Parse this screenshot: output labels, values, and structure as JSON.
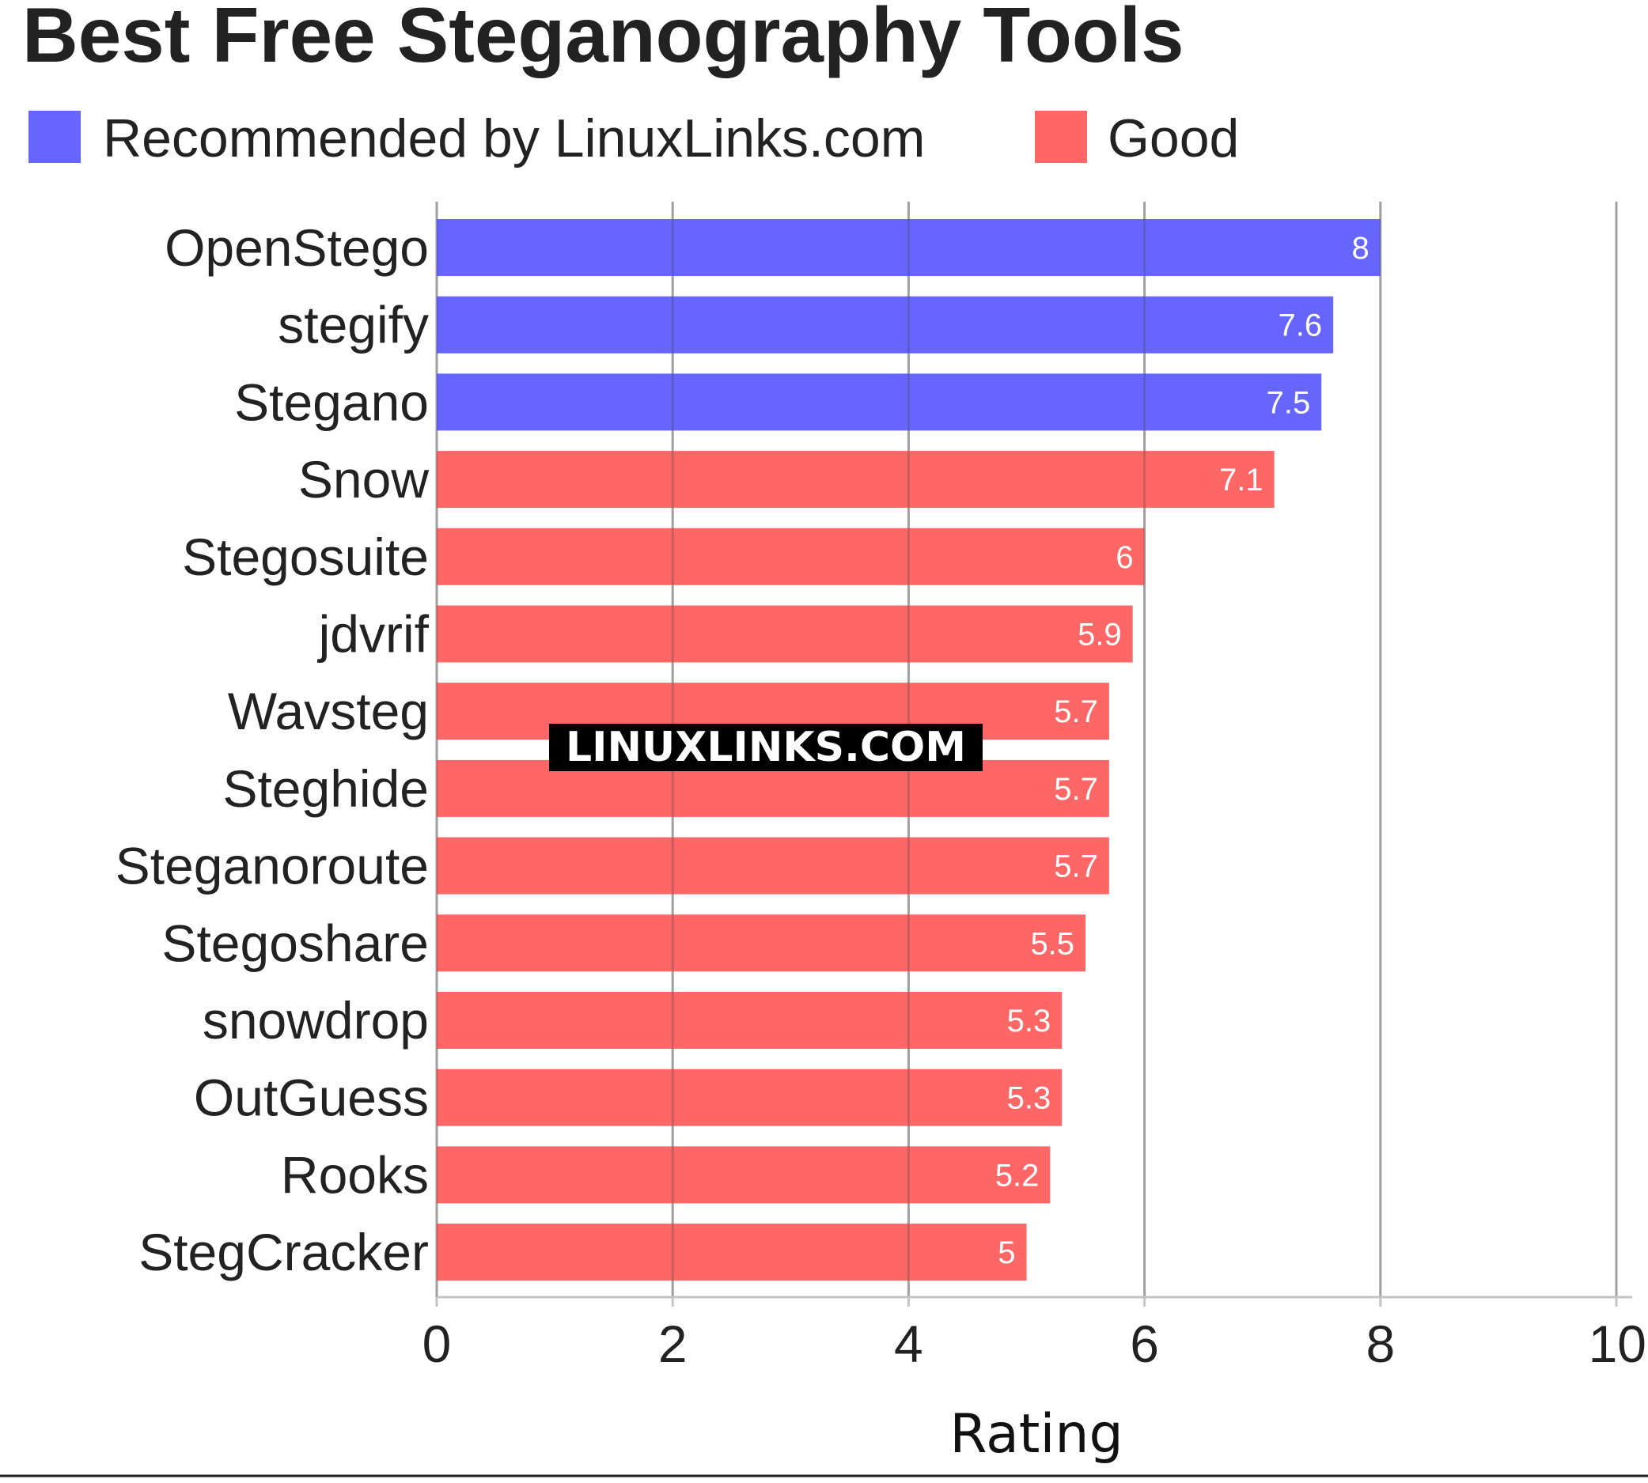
{
  "chart_data": {
    "type": "bar",
    "orientation": "horizontal",
    "title": "Best Free Steganography Tools",
    "xlabel": "Rating",
    "ylabel": "",
    "xlim": [
      0,
      10
    ],
    "xticks": [
      "0",
      "2",
      "4",
      "6",
      "8",
      "10"
    ],
    "grid": "vertical",
    "legend_position": "top-left",
    "legend": [
      {
        "label": "Recommended by LinuxLinks.com",
        "color": "#6666ff"
      },
      {
        "label": "Good",
        "color": "#ff6666"
      }
    ],
    "bars": [
      {
        "category": "OpenStego",
        "value": 8,
        "label": "8",
        "group": "Recommended by LinuxLinks.com"
      },
      {
        "category": "stegify",
        "value": 7.6,
        "label": "7.6",
        "group": "Recommended by LinuxLinks.com"
      },
      {
        "category": "Stegano",
        "value": 7.5,
        "label": "7.5",
        "group": "Recommended by LinuxLinks.com"
      },
      {
        "category": "Snow",
        "value": 7.1,
        "label": "7.1",
        "group": "Good"
      },
      {
        "category": "Stegosuite",
        "value": 6,
        "label": "6",
        "group": "Good"
      },
      {
        "category": "jdvrif",
        "value": 5.9,
        "label": "5.9",
        "group": "Good"
      },
      {
        "category": "Wavsteg",
        "value": 5.7,
        "label": "5.7",
        "group": "Good"
      },
      {
        "category": "Steghide",
        "value": 5.7,
        "label": "5.7",
        "group": "Good"
      },
      {
        "category": "Steganoroute",
        "value": 5.7,
        "label": "5.7",
        "group": "Good"
      },
      {
        "category": "Stegoshare",
        "value": 5.5,
        "label": "5.5",
        "group": "Good"
      },
      {
        "category": "snowdrop",
        "value": 5.3,
        "label": "5.3",
        "group": "Good"
      },
      {
        "category": "OutGuess",
        "value": 5.3,
        "label": "5.3",
        "group": "Good"
      },
      {
        "category": "Rooks",
        "value": 5.2,
        "label": "5.2",
        "group": "Good"
      },
      {
        "category": "StegCracker",
        "value": 5,
        "label": "5",
        "group": "Good"
      }
    ]
  },
  "watermark": {
    "text": "LINUXLINKS.COM"
  }
}
